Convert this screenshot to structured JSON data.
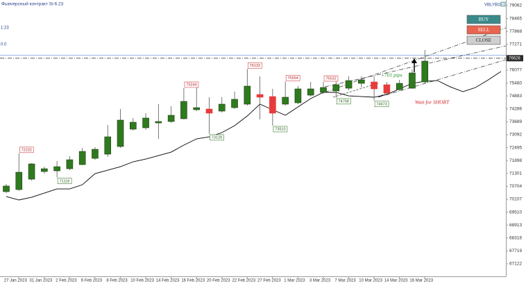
{
  "chart_data": {
    "type": "candlestick",
    "title": "Фьючерсный контракт Si-6.23",
    "categories": [
      null,
      "27 Jan 2023",
      null,
      "31 Jan 2023",
      null,
      "2 Feb 2023",
      null,
      "6 Feb 2023",
      null,
      "8 Feb 2023",
      null,
      "10 Feb 2023",
      null,
      "14 Feb 2023",
      null,
      "16 Feb 2023",
      null,
      "20 Feb 2023",
      null,
      "22 Feb 2023",
      null,
      "27 Feb 2023",
      null,
      "1 Mar 2023",
      null,
      "3 Mar 2023",
      null,
      "7 Mar 2023",
      null,
      "10 Mar 2023",
      null,
      "14 Mar 2023",
      null,
      "16 Mar 2023",
      null,
      null,
      null,
      null,
      null,
      null
    ],
    "open": [
      70460,
      70556,
      71037,
      71390,
      71422,
      71519,
      71711,
      71999,
      72193,
      72546,
      73348,
      73413,
      73637,
      73702,
      73830,
      74247,
      74280,
      74183,
      74343,
      74504,
      74953,
      74857,
      74504,
      74568,
      74921,
      75050,
      75114,
      75242,
      75467,
      75531,
      75403,
      75178,
      75242,
      75531,
      null,
      null,
      null,
      null,
      null,
      null
    ],
    "high": [
      70810,
      72232,
      71775,
      71615,
      71872,
      72097,
      72482,
      72514,
      73541,
      74280,
      73862,
      74087,
      74504,
      74408,
      75244,
      75306,
      74825,
      74825,
      75082,
      76133,
      75788,
      75210,
      75554,
      75339,
      75531,
      75532,
      75788,
      75788,
      75788,
      75788,
      75531,
      75627,
      76109,
      77008,
      null,
      null,
      null,
      null,
      null,
      null
    ],
    "low": [
      70390,
      70492,
      70973,
      71294,
      71118,
      71454,
      71679,
      71936,
      72064,
      72482,
      73284,
      73316,
      72899,
      73637,
      73798,
      74183,
      73128,
      74119,
      74279,
      74440,
      73798,
      73510,
      74440,
      74504,
      74857,
      74985,
      74798,
      75146,
      75274,
      74673,
      74953,
      75114,
      75210,
      75467,
      null,
      null,
      null,
      null,
      null,
      null
    ],
    "close": [
      70720,
      71358,
      71743,
      71519,
      71615,
      71936,
      72321,
      72418,
      72995,
      73766,
      73669,
      73862,
      73702,
      73990,
      74632,
      74343,
      74087,
      74504,
      74729,
      75339,
      74825,
      74087,
      74825,
      75210,
      75210,
      75274,
      75403,
      75595,
      75627,
      75210,
      75018,
      75467,
      75948,
      76494,
      null,
      null,
      null,
      null,
      null,
      null
    ],
    "up_color": "#2f7a1f",
    "down_color": "#e83b3b",
    "moving_average": {
      "color": "#000000",
      "values": [
        70235,
        70075,
        70203,
        70395,
        70588,
        70588,
        70780,
        71294,
        71454,
        71615,
        71840,
        71968,
        72129,
        72289,
        72610,
        72899,
        72995,
        73188,
        73509,
        73958,
        74504,
        74247,
        73990,
        74376,
        74761,
        75050,
        75050,
        74889,
        74857,
        74825,
        74953,
        75210,
        75467,
        75563,
        75595,
        75306,
        75082,
        75274,
        75628,
        76013
      ]
    },
    "ylim": [
      66480,
      79319
    ],
    "yticks": [
      79062,
      78465,
      77868,
      77271,
      76674,
      76077,
      75480,
      74883,
      74286,
      73689,
      73092,
      72495,
      71898,
      71301,
      70704,
      70107,
      69510,
      68913,
      68316,
      67719,
      67122
    ],
    "last_price": 76628,
    "annotations": [
      "+701 pips",
      "Wait for SHORT"
    ]
  },
  "panel": {
    "left_texts": [
      "1:23",
      "0.0"
    ],
    "brand": "VBLYBOT",
    "buttons": [
      "BUY",
      "SELL",
      "CLOSE"
    ]
  }
}
